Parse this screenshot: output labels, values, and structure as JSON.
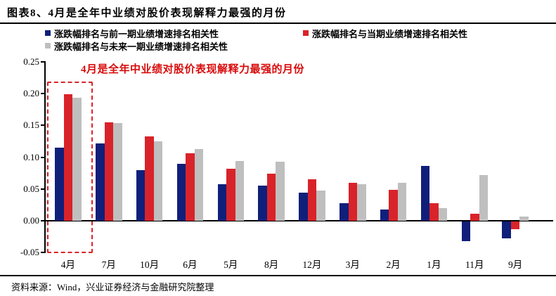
{
  "header": {
    "title": "图表8、4月是全年中业绩对股价表现解释力最强的月份"
  },
  "legend": [
    {
      "label": "涨跌幅排名与前一期业绩增速排名相关性",
      "color": "#101F7A"
    },
    {
      "label": "涨跌幅排名与当期业绩增速排名相关性",
      "color": "#D9232A"
    },
    {
      "label": "涨跌幅排名与未来一期业绩增速排名相关性",
      "color": "#BFBFBF"
    }
  ],
  "annotation": {
    "text": "4月是全年中业绩对股价表现解释力最强的月份",
    "color": "#D90A0A"
  },
  "chart_data": {
    "type": "bar",
    "categories": [
      "4月",
      "7月",
      "10月",
      "6月",
      "5月",
      "8月",
      "12月",
      "3月",
      "2月",
      "1月",
      "11月",
      "9月"
    ],
    "series": [
      {
        "name": "涨跌幅排名与前一期业绩增速排名相关性",
        "color": "#101F7A",
        "values": [
          0.115,
          0.122,
          0.08,
          0.089,
          0.057,
          0.055,
          0.044,
          0.027,
          0.017,
          0.086,
          -0.031,
          -0.027
        ]
      },
      {
        "name": "涨跌幅排名与当期业绩增速排名相关性",
        "color": "#D9232A",
        "values": [
          0.199,
          0.155,
          0.133,
          0.106,
          0.082,
          0.074,
          0.065,
          0.06,
          0.049,
          0.027,
          0.011,
          -0.012
        ]
      },
      {
        "name": "涨跌幅排名与未来一期业绩增速排名相关性",
        "color": "#BFBFBF",
        "values": [
          0.194,
          0.154,
          0.125,
          0.113,
          0.094,
          0.093,
          0.047,
          0.057,
          0.06,
          0.02,
          0.072,
          0.007
        ]
      }
    ],
    "title": "图表8、4月是全年中业绩对股价表现解释力最强的月份",
    "xlabel": "",
    "ylabel": "",
    "ylim": [
      -0.05,
      0.25
    ],
    "y_ticks": [
      "0.25",
      "0.20",
      "0.15",
      "0.10",
      "0.05",
      "0.00",
      "-0.05"
    ],
    "grid": false,
    "legend_position": "top",
    "highlight": {
      "category": "4月",
      "style": "red-dashed-box"
    },
    "annotation": "4月是全年中业绩对股价表现解释力最强的月份"
  },
  "footer": {
    "source": "资料来源：Wind，兴业证券经济与金融研究院整理"
  }
}
